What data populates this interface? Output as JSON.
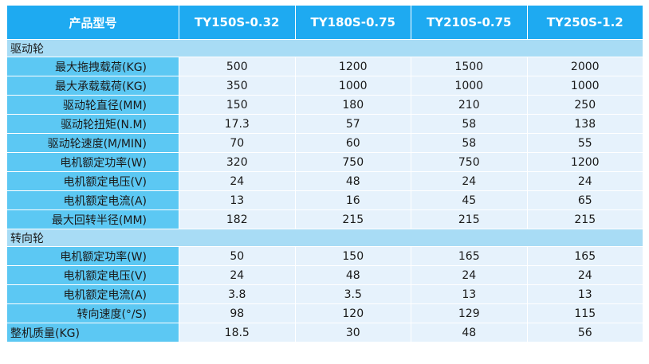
{
  "header": {
    "label": "产品型号",
    "models": [
      "TY150S-0.32",
      "TY180S-0.75",
      "TY210S-0.75",
      "TY250S-1.2"
    ]
  },
  "sections": [
    {
      "title": "驱动轮",
      "rows": [
        {
          "label": "最大拖拽载荷(KG)",
          "values": [
            "500",
            "1200",
            "1500",
            "2000"
          ]
        },
        {
          "label": "最大承载载荷(KG)",
          "values": [
            "350",
            "1000",
            "1000",
            "1000"
          ]
        },
        {
          "label": "驱动轮直径(MM)",
          "values": [
            "150",
            "180",
            "210",
            "250"
          ]
        },
        {
          "label": "驱动轮扭矩(N.M)",
          "values": [
            "17.3",
            "57",
            "58",
            "138"
          ]
        },
        {
          "label": "驱动轮速度(M/MIN)",
          "values": [
            "70",
            "60",
            "58",
            "55"
          ]
        },
        {
          "label": "电机额定功率(W)",
          "values": [
            "320",
            "750",
            "750",
            "1200"
          ]
        },
        {
          "label": "电机额定电压(V)",
          "values": [
            "24",
            "48",
            "24",
            "24"
          ]
        },
        {
          "label": "电机额定电流(A)",
          "values": [
            "13",
            "16",
            "45",
            "65"
          ]
        },
        {
          "label": "最大回转半径(MM)",
          "values": [
            "182",
            "215",
            "215",
            "215"
          ]
        }
      ]
    },
    {
      "title": "转向轮",
      "rows": [
        {
          "label": "电机额定功率(W)",
          "values": [
            "50",
            "150",
            "165",
            "165"
          ]
        },
        {
          "label": "电机额定电压(V)",
          "values": [
            "24",
            "48",
            "24",
            "24"
          ]
        },
        {
          "label": "电机额定电流(A)",
          "values": [
            "3.8",
            "3.5",
            "13",
            "13"
          ]
        },
        {
          "label": "转向速度(°/S)",
          "values": [
            "98",
            "120",
            "129",
            "115"
          ]
        }
      ]
    }
  ],
  "footer_row": {
    "label": "整机质量(KG)",
    "values": [
      "18.5",
      "30",
      "48",
      "56"
    ]
  },
  "colors": {
    "header_bg": "#1eaaf1",
    "section_bg": "#a8dcf5",
    "label_bg": "#5cc8f3",
    "value_bg": "#e6f2fc"
  }
}
